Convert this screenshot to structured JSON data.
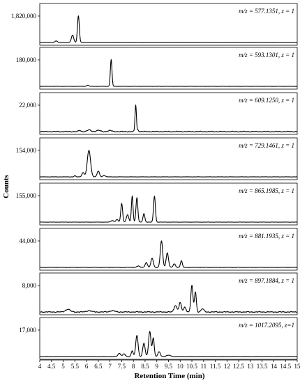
{
  "chart_data": {
    "type": "line",
    "xlabel": "Retention Time (min)",
    "ylabel": "Counts",
    "xlim": [
      4,
      15
    ],
    "x_ticks": [
      "4",
      "4.5",
      "5",
      "5.5",
      "6",
      "6.5",
      "7",
      "7.5",
      "8",
      "8.5",
      "9",
      "9.5",
      "10",
      "10.5",
      "11",
      "11.5",
      "12",
      "12.5",
      "13",
      "13.5",
      "14",
      "14.5",
      "15"
    ],
    "grid": false,
    "legend": "none",
    "series": [
      {
        "annotation": "m/z = 577.1351, z = 1",
        "ymax_label": "1,820,000",
        "ymax": 1820000,
        "peaks": [
          [
            4.7,
            0.06,
            0.05
          ],
          [
            5.4,
            0.28,
            0.05
          ],
          [
            5.65,
            1.0,
            0.04
          ]
        ]
      },
      {
        "annotation": "m/z = 593.1301, z = 1",
        "ymax_label": "180,000",
        "ymax": 180000,
        "peaks": [
          [
            6.05,
            0.04,
            0.05
          ],
          [
            7.05,
            1.0,
            0.035
          ]
        ]
      },
      {
        "annotation": "m/z = 609.1250, z = 1",
        "ymax_label": "22,000",
        "ymax": 22000,
        "peaks": [
          [
            5.7,
            0.04,
            0.05
          ],
          [
            6.1,
            0.06,
            0.08
          ],
          [
            6.5,
            0.05,
            0.08
          ],
          [
            7.0,
            0.04,
            0.08
          ],
          [
            8.1,
            1.0,
            0.03
          ],
          [
            8.2,
            0.06,
            0.03
          ]
        ]
      },
      {
        "annotation": "m/z = 729.1461, z = 1",
        "ymax_label": "154,000",
        "ymax": 154000,
        "peaks": [
          [
            5.5,
            0.05,
            0.03
          ],
          [
            5.85,
            0.16,
            0.05
          ],
          [
            6.1,
            1.0,
            0.07
          ],
          [
            6.5,
            0.22,
            0.05
          ],
          [
            6.75,
            0.06,
            0.05
          ]
        ]
      },
      {
        "annotation": "m/z = 865.1985, z = 1",
        "ymax_label": "155,000",
        "ymax": 155000,
        "peaks": [
          [
            7.1,
            0.06,
            0.06
          ],
          [
            7.3,
            0.1,
            0.05
          ],
          [
            7.5,
            0.7,
            0.04
          ],
          [
            7.75,
            0.28,
            0.05
          ],
          [
            7.95,
            0.98,
            0.035
          ],
          [
            8.15,
            0.92,
            0.04
          ],
          [
            8.45,
            0.32,
            0.04
          ],
          [
            8.9,
            0.98,
            0.04
          ]
        ]
      },
      {
        "annotation": "m/z = 881.1935, z = 1",
        "ymax_label": "44,000",
        "ymax": 44000,
        "peaks": [
          [
            8.2,
            0.05,
            0.06
          ],
          [
            8.55,
            0.18,
            0.05
          ],
          [
            8.8,
            0.35,
            0.05
          ],
          [
            9.2,
            1.0,
            0.05
          ],
          [
            9.45,
            0.55,
            0.05
          ],
          [
            9.75,
            0.13,
            0.05
          ],
          [
            10.05,
            0.25,
            0.04
          ]
        ]
      },
      {
        "annotation": "m/z = 897.1884, z = 1",
        "ymax_label": "8,000",
        "ymax": 8000,
        "peaks": [
          [
            5.2,
            0.1,
            0.1
          ],
          [
            6.1,
            0.05,
            0.1
          ],
          [
            7.1,
            0.05,
            0.1
          ],
          [
            9.8,
            0.25,
            0.06
          ],
          [
            10.0,
            0.35,
            0.05
          ],
          [
            10.2,
            0.18,
            0.05
          ],
          [
            10.5,
            1.0,
            0.045
          ],
          [
            10.65,
            0.75,
            0.04
          ],
          [
            10.95,
            0.12,
            0.06
          ]
        ]
      },
      {
        "annotation": "m/z = 1017.2095, z=1",
        "ymax_label": "17,000",
        "ymax": 17000,
        "peaks": [
          [
            7.4,
            0.12,
            0.06
          ],
          [
            7.6,
            0.1,
            0.05
          ],
          [
            7.95,
            0.22,
            0.04
          ],
          [
            8.15,
            0.8,
            0.05
          ],
          [
            8.45,
            0.5,
            0.05
          ],
          [
            8.7,
            0.95,
            0.05
          ],
          [
            8.85,
            0.7,
            0.04
          ],
          [
            9.1,
            0.18,
            0.05
          ],
          [
            9.5,
            0.05,
            0.08
          ]
        ]
      }
    ]
  }
}
